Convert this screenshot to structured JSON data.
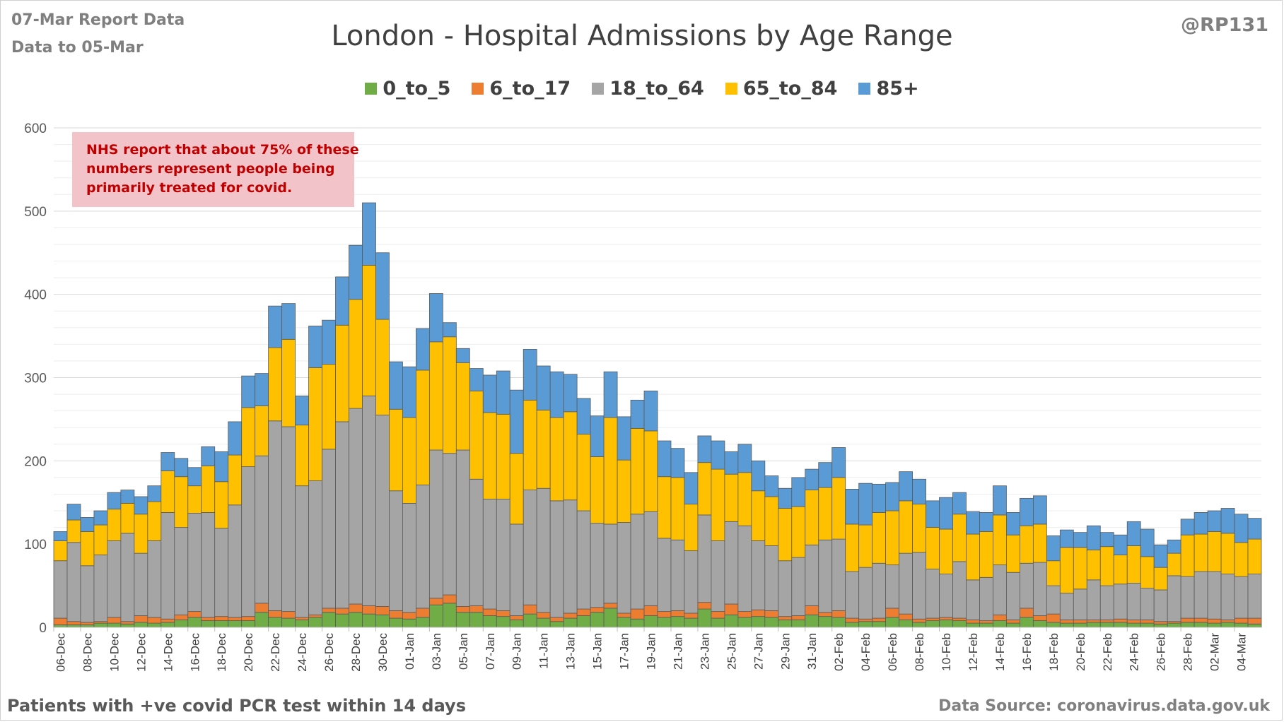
{
  "header": {
    "report_line": "07-Mar Report Data",
    "data_line": "Data to 05-Mar",
    "handle": "@RP131"
  },
  "footer": {
    "left": "Patients with  +ve covid PCR test within 14 days",
    "right": "Data Source: coronavirus.data.gov.uk"
  },
  "annotation": {
    "line1": "NHS report that about 75% of these",
    "line2": "numbers represent people being",
    "line3": "primarily treated for covid."
  },
  "chart_data": {
    "type": "bar",
    "stacked": true,
    "title": "London - Hospital Admissions by Age Range",
    "xlabel": "",
    "ylabel": "",
    "ylim": [
      0,
      600
    ],
    "yticks": [
      0,
      100,
      200,
      300,
      400,
      500,
      600
    ],
    "grid": true,
    "legend_position": "top",
    "categories": [
      "06-Dec",
      "07-Dec",
      "08-Dec",
      "09-Dec",
      "10-Dec",
      "11-Dec",
      "12-Dec",
      "13-Dec",
      "14-Dec",
      "15-Dec",
      "16-Dec",
      "17-Dec",
      "18-Dec",
      "19-Dec",
      "20-Dec",
      "21-Dec",
      "22-Dec",
      "23-Dec",
      "24-Dec",
      "25-Dec",
      "26-Dec",
      "27-Dec",
      "28-Dec",
      "29-Dec",
      "30-Dec",
      "31-Dec",
      "01-Jan",
      "02-Jan",
      "03-Jan",
      "04-Jan",
      "05-Jan",
      "06-Jan",
      "07-Jan",
      "08-Jan",
      "09-Jan",
      "10-Jan",
      "11-Jan",
      "12-Jan",
      "13-Jan",
      "14-Jan",
      "15-Jan",
      "16-Jan",
      "17-Jan",
      "18-Jan",
      "19-Jan",
      "20-Jan",
      "21-Jan",
      "22-Jan",
      "23-Jan",
      "24-Jan",
      "25-Jan",
      "26-Jan",
      "27-Jan",
      "28-Jan",
      "29-Jan",
      "30-Jan",
      "31-Jan",
      "01-Feb",
      "02-Feb",
      "03-Feb",
      "04-Feb",
      "05-Feb",
      "06-Feb",
      "07-Feb",
      "08-Feb",
      "09-Feb",
      "10-Feb",
      "11-Feb",
      "12-Feb",
      "13-Feb",
      "14-Feb",
      "15-Feb",
      "16-Feb",
      "17-Feb",
      "18-Feb",
      "19-Feb",
      "20-Feb",
      "21-Feb",
      "22-Feb",
      "23-Feb",
      "24-Feb",
      "25-Feb",
      "26-Feb",
      "27-Feb",
      "28-Feb",
      "01-Mar",
      "02-Mar",
      "03-Mar",
      "04-Mar",
      "05-Mar"
    ],
    "x_tick_labels": [
      "06-Dec",
      "08-Dec",
      "10-Dec",
      "12-Dec",
      "14-Dec",
      "16-Dec",
      "18-Dec",
      "20-Dec",
      "22-Dec",
      "24-Dec",
      "26-Dec",
      "28-Dec",
      "30-Dec",
      "01-Jan",
      "03-Jan",
      "05-Jan",
      "07-Jan",
      "09-Jan",
      "11-Jan",
      "13-Jan",
      "15-Jan",
      "17-Jan",
      "19-Jan",
      "21-Jan",
      "23-Jan",
      "25-Jan",
      "27-Jan",
      "29-Jan",
      "31-Jan",
      "02-Feb",
      "04-Feb",
      "06-Feb",
      "08-Feb",
      "10-Feb",
      "12-Feb",
      "14-Feb",
      "16-Feb",
      "18-Feb",
      "20-Feb",
      "22-Feb",
      "24-Feb",
      "26-Feb",
      "28-Feb",
      "02-Mar",
      "04-Mar"
    ],
    "series": [
      {
        "name": "0_to_5",
        "color": "#70ad47",
        "values": [
          3,
          3,
          3,
          5,
          5,
          4,
          6,
          5,
          6,
          9,
          12,
          8,
          8,
          8,
          8,
          18,
          12,
          11,
          9,
          12,
          18,
          16,
          18,
          16,
          15,
          11,
          10,
          12,
          27,
          29,
          18,
          18,
          14,
          13,
          9,
          16,
          11,
          7,
          11,
          14,
          18,
          23,
          12,
          10,
          14,
          12,
          13,
          11,
          22,
          11,
          15,
          12,
          13,
          12,
          9,
          9,
          15,
          13,
          12,
          6,
          7,
          7,
          12,
          9,
          6,
          8,
          9,
          8,
          5,
          5,
          8,
          5,
          12,
          8,
          6,
          5,
          5,
          6,
          6,
          6,
          5,
          5,
          4,
          5,
          6,
          6,
          5,
          6,
          5,
          4
        ]
      },
      {
        "name": "6_to_17",
        "color": "#ed7d31",
        "values": [
          8,
          4,
          3,
          2,
          7,
          3,
          8,
          7,
          4,
          6,
          7,
          4,
          5,
          4,
          5,
          11,
          8,
          8,
          3,
          3,
          5,
          7,
          10,
          10,
          10,
          9,
          8,
          11,
          8,
          10,
          7,
          8,
          8,
          7,
          5,
          11,
          7,
          5,
          6,
          8,
          6,
          6,
          5,
          12,
          12,
          7,
          7,
          6,
          8,
          8,
          13,
          7,
          8,
          8,
          4,
          5,
          11,
          5,
          8,
          5,
          3,
          4,
          11,
          7,
          4,
          3,
          3,
          3,
          4,
          3,
          7,
          4,
          11,
          6,
          10,
          4,
          4,
          3,
          3,
          4,
          4,
          4,
          3,
          2,
          5,
          5,
          5,
          3,
          6,
          7
        ]
      },
      {
        "name": "18_to_64",
        "color": "#a5a5a5",
        "values": [
          69,
          95,
          68,
          80,
          92,
          106,
          75,
          92,
          128,
          105,
          118,
          126,
          106,
          135,
          180,
          177,
          228,
          222,
          158,
          161,
          191,
          224,
          235,
          252,
          230,
          144,
          131,
          148,
          178,
          170,
          188,
          152,
          132,
          134,
          110,
          138,
          149,
          140,
          136,
          118,
          101,
          95,
          109,
          114,
          113,
          88,
          85,
          75,
          105,
          85,
          99,
          103,
          83,
          78,
          67,
          70,
          73,
          87,
          86,
          56,
          62,
          66,
          52,
          73,
          80,
          59,
          52,
          68,
          48,
          52,
          60,
          57,
          54,
          64,
          34,
          32,
          37,
          48,
          41,
          42,
          44,
          38,
          38,
          55,
          50,
          56,
          57,
          55,
          50,
          53
        ]
      },
      {
        "name": "65_to_84",
        "color": "#ffc000",
        "values": [
          24,
          27,
          41,
          36,
          38,
          36,
          47,
          47,
          50,
          61,
          33,
          56,
          56,
          60,
          71,
          60,
          88,
          105,
          73,
          136,
          102,
          116,
          131,
          157,
          115,
          98,
          103,
          138,
          130,
          140,
          105,
          106,
          104,
          102,
          85,
          108,
          94,
          100,
          106,
          92,
          80,
          128,
          75,
          103,
          97,
          74,
          75,
          56,
          63,
          86,
          57,
          64,
          60,
          59,
          63,
          61,
          66,
          63,
          74,
          57,
          51,
          61,
          65,
          63,
          58,
          50,
          54,
          57,
          55,
          55,
          60,
          45,
          45,
          46,
          30,
          55,
          50,
          36,
          47,
          35,
          45,
          38,
          27,
          27,
          50,
          45,
          48,
          49,
          41,
          42
        ]
      },
      {
        "name": "85+",
        "color": "#5b9bd5",
        "values": [
          11,
          19,
          17,
          17,
          20,
          16,
          21,
          19,
          22,
          22,
          22,
          23,
          36,
          40,
          38,
          39,
          50,
          43,
          35,
          50,
          53,
          58,
          65,
          75,
          80,
          57,
          61,
          50,
          58,
          17,
          17,
          27,
          45,
          52,
          76,
          61,
          53,
          55,
          45,
          43,
          49,
          55,
          52,
          34,
          48,
          43,
          35,
          38,
          32,
          34,
          27,
          34,
          36,
          25,
          24,
          35,
          25,
          30,
          36,
          42,
          50,
          34,
          34,
          35,
          30,
          32,
          38,
          26,
          27,
          23,
          35,
          27,
          33,
          34,
          30,
          21,
          18,
          29,
          17,
          24,
          29,
          33,
          27,
          16,
          19,
          26,
          25,
          30,
          34,
          25
        ]
      }
    ]
  }
}
